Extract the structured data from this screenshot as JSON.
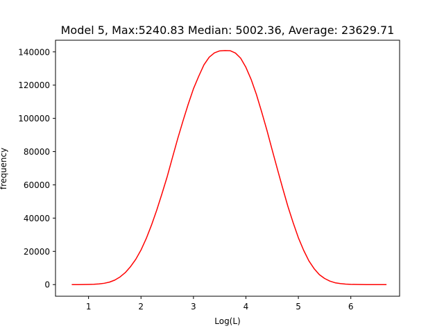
{
  "chart_data": {
    "type": "line",
    "title": "Model 5, Max:5240.83 Median: 5002.36, Average: 23629.71",
    "xlabel": "Log(L)",
    "ylabel": "frequency",
    "xlim": [
      0.37,
      6.93
    ],
    "ylim": [
      -7000,
      147000
    ],
    "x_ticks": [
      1,
      2,
      3,
      4,
      5,
      6
    ],
    "y_ticks": [
      0,
      20000,
      40000,
      60000,
      80000,
      100000,
      120000,
      140000
    ],
    "grid": false,
    "series": [
      {
        "color": "#ff0000",
        "x": [
          0.68,
          0.8,
          0.9,
          1.0,
          1.1,
          1.2,
          1.3,
          1.4,
          1.5,
          1.6,
          1.7,
          1.8,
          1.9,
          2.0,
          2.1,
          2.2,
          2.3,
          2.4,
          2.5,
          2.6,
          2.7,
          2.8,
          2.9,
          3.0,
          3.1,
          3.2,
          3.3,
          3.4,
          3.5,
          3.6,
          3.7,
          3.8,
          3.9,
          4.0,
          4.1,
          4.2,
          4.3,
          4.4,
          4.5,
          4.6,
          4.7,
          4.8,
          4.9,
          5.0,
          5.1,
          5.2,
          5.3,
          5.4,
          5.5,
          5.6,
          5.7,
          5.8,
          5.9,
          6.0,
          6.1,
          6.2,
          6.3,
          6.5,
          6.68
        ],
        "y": [
          0,
          10,
          30,
          80,
          180,
          400,
          800,
          1500,
          2700,
          4600,
          7200,
          10800,
          15200,
          20800,
          27700,
          35800,
          44800,
          54700,
          65000,
          76500,
          87800,
          98400,
          108500,
          117800,
          125300,
          132200,
          136800,
          139400,
          140600,
          140800,
          140700,
          139300,
          136200,
          130700,
          123400,
          114400,
          103900,
          92900,
          81100,
          69500,
          58100,
          47100,
          37300,
          28200,
          20700,
          14300,
          9600,
          6000,
          3700,
          2100,
          1100,
          600,
          300,
          150,
          70,
          30,
          10,
          5,
          0
        ]
      }
    ]
  }
}
